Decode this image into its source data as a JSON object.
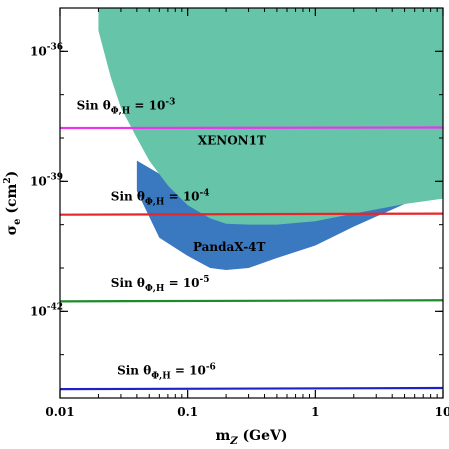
{
  "chart_data": {
    "type": "area",
    "title": "",
    "xlabel": "m_Z (GeV)",
    "ylabel": "σ_e (cm²)",
    "x_scale": "log",
    "y_scale": "log",
    "xlim": [
      0.01,
      10
    ],
    "ylim": [
      1e-44,
      1e-35
    ],
    "grid": false,
    "x_ticks": [
      {
        "value": 0.01,
        "label": "0.01"
      },
      {
        "value": 0.1,
        "label": "0.1"
      },
      {
        "value": 1,
        "label": "1"
      },
      {
        "value": 10,
        "label": "10"
      }
    ],
    "y_ticks": [
      {
        "value": 1e-36,
        "label": "10",
        "exp": "-36"
      },
      {
        "value": 1e-39,
        "label": "10",
        "exp": "-39"
      },
      {
        "value": 1e-42,
        "label": "10",
        "exp": "-42"
      }
    ],
    "regions": [
      {
        "name": "PandaX-4T",
        "color": "#3a78c0",
        "label": "PandaX-4T",
        "label_x": 0.11,
        "label_y": 2.5e-41,
        "lower_boundary": [
          [
            0.04,
            6e-40
          ],
          [
            0.06,
            5e-41
          ],
          [
            0.1,
            1.9e-41
          ],
          [
            0.15,
            1e-41
          ],
          [
            0.2,
            9e-42
          ],
          [
            0.3,
            1e-41
          ],
          [
            0.5,
            1.7e-41
          ],
          [
            1,
            3.3e-41
          ],
          [
            2,
            9e-41
          ],
          [
            5,
            3e-40
          ],
          [
            10,
            6e-40
          ]
        ],
        "upper_boundary": [
          [
            0.04,
            3e-39
          ],
          [
            0.06,
            1.5e-39
          ],
          [
            0.1,
            1e-39
          ],
          [
            0.2,
            8e-40
          ],
          [
            0.5,
            9e-40
          ],
          [
            1,
            1.1e-39
          ],
          [
            2,
            1.7e-39
          ],
          [
            5,
            3e-39
          ],
          [
            10,
            5e-39
          ]
        ]
      },
      {
        "name": "XENON1T",
        "color": "#66c4a8",
        "label": "XENON1T",
        "label_x": 0.12,
        "label_y": 7e-39,
        "lower_boundary": [
          [
            0.02,
            3e-36
          ],
          [
            0.025,
            2.5e-37
          ],
          [
            0.03,
            5e-38
          ],
          [
            0.04,
            1e-38
          ],
          [
            0.05,
            3e-39
          ],
          [
            0.07,
            8e-40
          ],
          [
            0.1,
            2.8e-40
          ],
          [
            0.15,
            1.4e-40
          ],
          [
            0.2,
            1.05e-40
          ],
          [
            0.3,
            1e-40
          ],
          [
            0.5,
            1e-40
          ],
          [
            1,
            1.2e-40
          ],
          [
            2,
            1.8e-40
          ],
          [
            5,
            3e-40
          ],
          [
            10,
            4e-40
          ]
        ]
      }
    ],
    "series": [
      {
        "name": "Sin θΦ,H = 10-3",
        "color": "#ee33ee",
        "x": [
          0.01,
          10
        ],
        "values": [
          1.7e-38,
          1.75e-38
        ],
        "label": {
          "main": "Sin θ",
          "sub": "Φ,H",
          "rest": " = 10",
          "exp": "-3"
        },
        "label_x": 0.0135,
        "label_y": 4.5e-38
      },
      {
        "name": "Sin θΦ,H = 10-4",
        "color": "#e8262a",
        "x": [
          0.01,
          10
        ],
        "values": [
          1.7e-40,
          1.8e-40
        ],
        "label": {
          "main": "Sin θ",
          "sub": "Φ,H",
          "rest": " = 10",
          "exp": "-4"
        },
        "label_x": 0.025,
        "label_y": 3.6e-40
      },
      {
        "name": "Sin θΦ,H = 10-5",
        "color": "#1e8a2a",
        "x": [
          0.01,
          10
        ],
        "values": [
          1.7e-42,
          1.8e-42
        ],
        "label": {
          "main": "Sin θ",
          "sub": "Φ,H",
          "rest": " = 10",
          "exp": "-5"
        },
        "label_x": 0.025,
        "label_y": 3.6e-42
      },
      {
        "name": "Sin θΦ,H = 10-6",
        "color": "#1c22c8",
        "x": [
          0.01,
          10
        ],
        "values": [
          1.6e-44,
          1.7e-44
        ],
        "label": {
          "main": "Sin θ",
          "sub": "Φ,H",
          "rest": " = 10",
          "exp": "-6"
        },
        "label_x": 0.028,
        "label_y": 3.5e-44
      }
    ]
  }
}
